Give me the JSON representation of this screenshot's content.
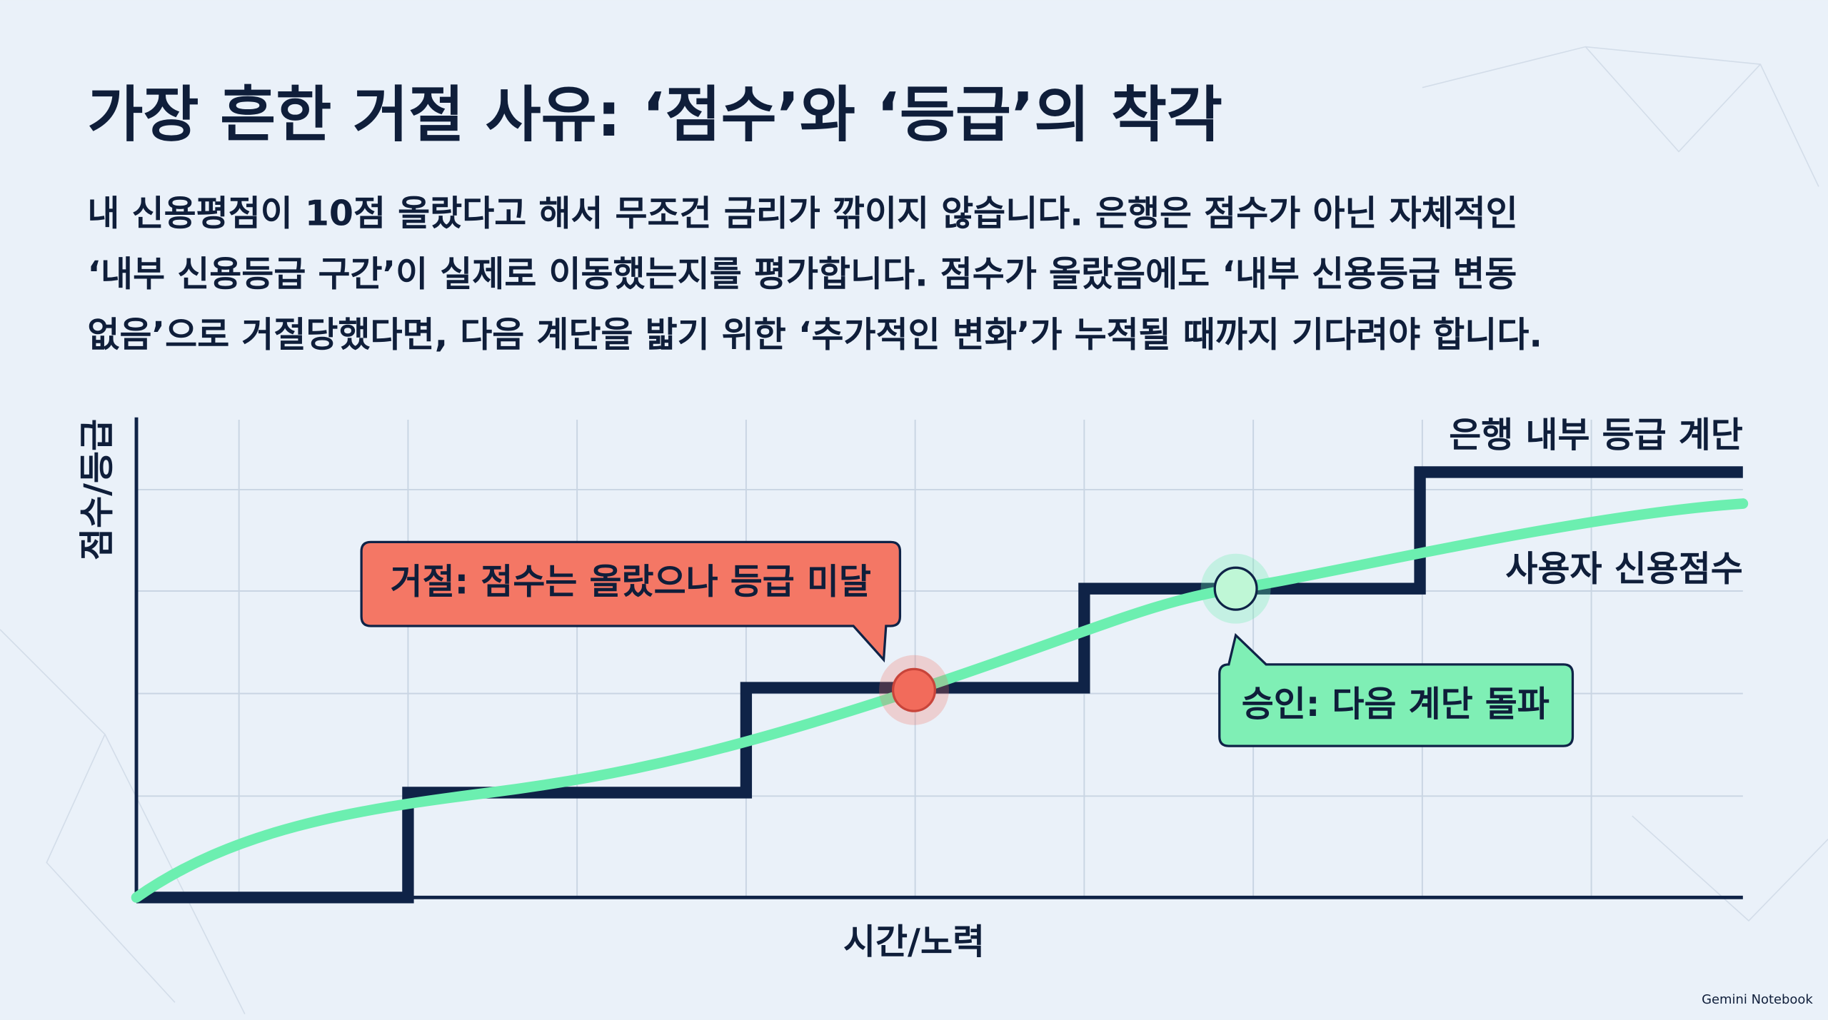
{
  "title": "가장 흔한 거절 사유: ‘점수’와 ‘등급’의 착각",
  "body": [
    "내 신용평점이 10점 올랐다고 해서 무조건 금리가 깎이지 않습니다. 은행은 점수가 아닌 자체적인",
    "‘내부 신용등급 구간’이 실제로 이동했는지를 평가합니다. 점수가 올랐음에도 ‘내부 신용등급 변동",
    "없음’으로 거절당했다면, 다음 계단을 밟기 위한 ‘추가적인 변화’가 누적될 때까지 기다려야 합니다."
  ],
  "diagram": {
    "y_axis_label": "점수/등급",
    "x_axis_label": "시간/노력",
    "series_labels": [
      "은행 내부 등급 계단",
      "사용자 신용점수"
    ],
    "callouts": [
      "거절: 점수는 올랐으나 등급 미달",
      "승인: 다음 계단 돌파"
    ]
  },
  "watermark": "Gemini Notebook"
}
